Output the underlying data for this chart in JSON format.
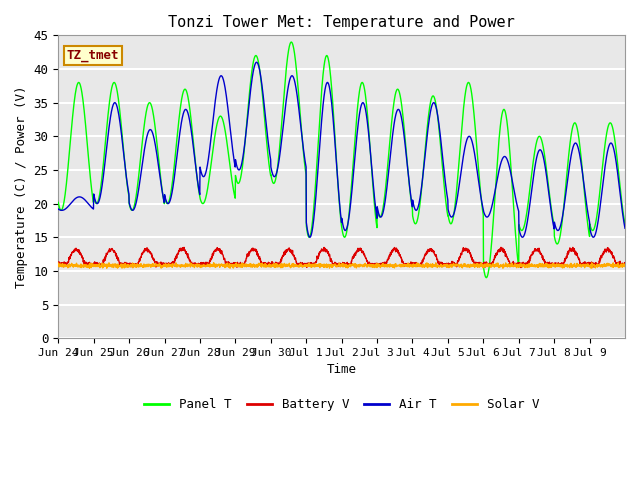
{
  "title": "Tonzi Tower Met: Temperature and Power",
  "xlabel": "Time",
  "ylabel": "Temperature (C) / Power (V)",
  "ylim": [
    0,
    45
  ],
  "yticks": [
    0,
    5,
    10,
    15,
    20,
    25,
    30,
    35,
    40,
    45
  ],
  "annotation_text": "TZ_tmet",
  "annotation_bg": "#ffffcc",
  "annotation_border": "#cc8800",
  "annotation_text_color": "#880000",
  "bg_color": "#dcdcdc",
  "panel_t_color": "#00ff00",
  "battery_v_color": "#dd0000",
  "air_t_color": "#0000cc",
  "solar_v_color": "#ffaa00",
  "legend_labels": [
    "Panel T",
    "Battery V",
    "Air T",
    "Solar V"
  ],
  "x_tick_labels": [
    "Jun 24",
    "Jun 25",
    "Jun 26",
    "Jun 27",
    "Jun 28",
    "Jun 29",
    "Jun 30",
    "Jul 1",
    "Jul 2",
    "Jul 3",
    "Jul 4",
    "Jul 5",
    "Jul 6",
    "Jul 7",
    "Jul 8",
    "Jul 9"
  ],
  "num_days": 16
}
